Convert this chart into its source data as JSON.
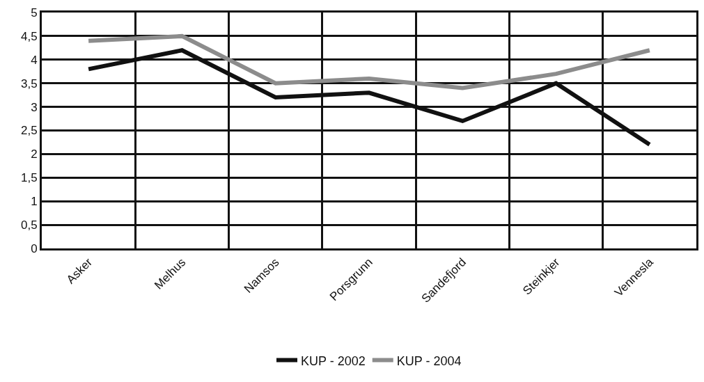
{
  "chart_data": {
    "type": "line",
    "categories": [
      "Asker",
      "Melhus",
      "Namsos",
      "Porsgrunn",
      "Sandefjord",
      "Steinkjer",
      "Vennesla"
    ],
    "series": [
      {
        "name": "KUP - 2002",
        "color": "#111111",
        "values": [
          3.8,
          4.2,
          3.2,
          3.3,
          2.7,
          3.5,
          2.2
        ]
      },
      {
        "name": "KUP - 2004",
        "color": "#8c8c8c",
        "values": [
          4.4,
          4.5,
          3.5,
          3.6,
          3.4,
          3.7,
          4.2
        ]
      }
    ],
    "ylim": [
      0,
      5
    ],
    "yticks": [
      {
        "value": 0,
        "label": "0"
      },
      {
        "value": 0.5,
        "label": "0,5"
      },
      {
        "value": 1,
        "label": "1"
      },
      {
        "value": 1.5,
        "label": "1,5"
      },
      {
        "value": 2,
        "label": "2"
      },
      {
        "value": 2.5,
        "label": "2,5"
      },
      {
        "value": 3,
        "label": "3"
      },
      {
        "value": 3.5,
        "label": "3,5"
      },
      {
        "value": 4,
        "label": "4"
      },
      {
        "value": 4.5,
        "label": "4,5"
      },
      {
        "value": 5,
        "label": "5"
      }
    ],
    "grid": true,
    "legend": "bottom",
    "marker": "none",
    "line_style": "solid"
  }
}
